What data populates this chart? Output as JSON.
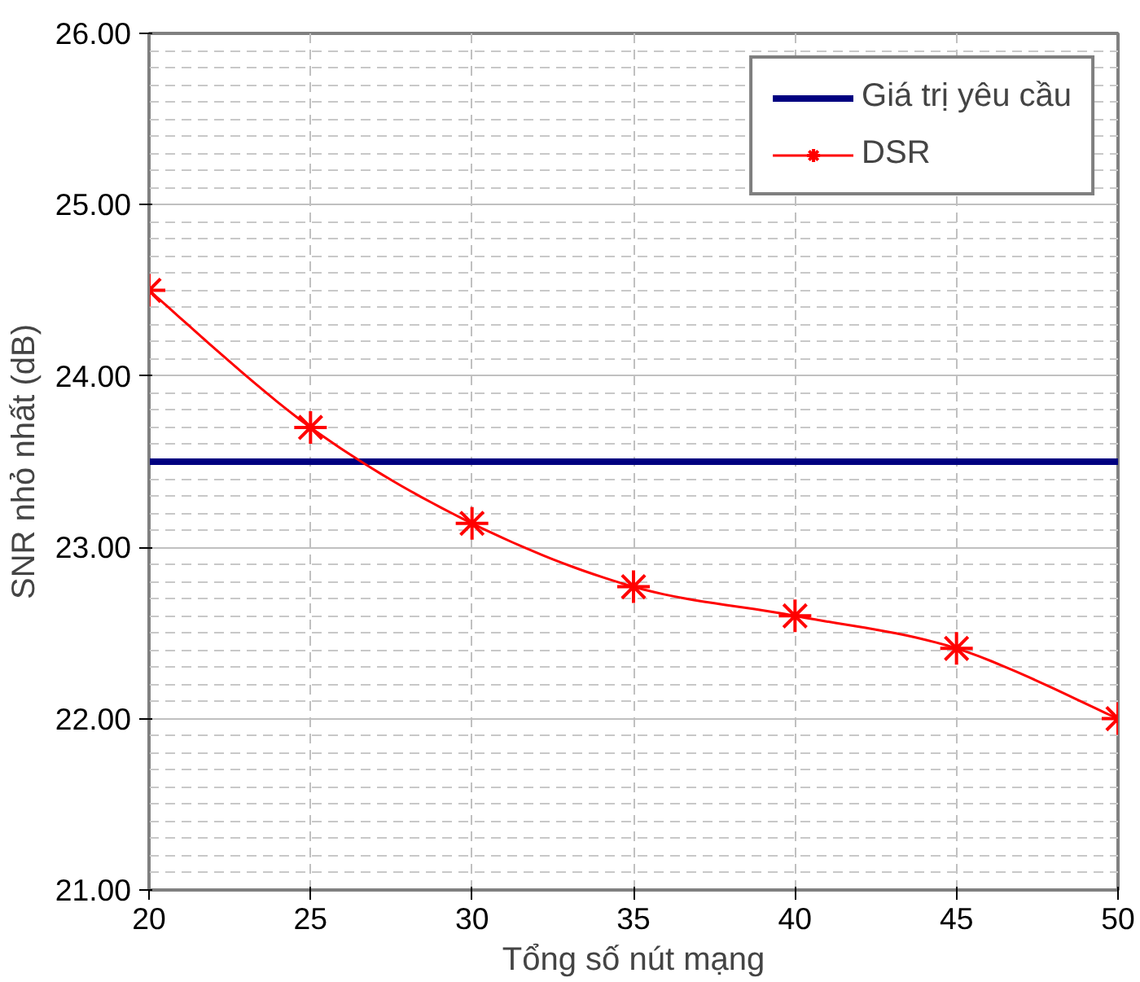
{
  "chart_data": {
    "type": "line",
    "xlabel": "Tổng số nút mạng",
    "ylabel": "SNR nhỏ nhất (dB)",
    "x": [
      20,
      25,
      30,
      35,
      40,
      45,
      50
    ],
    "series": [
      {
        "name": "Giá trị yêu cầu",
        "color": "#000080",
        "values": [
          23.5,
          23.5,
          23.5,
          23.5,
          23.5,
          23.5,
          23.5
        ],
        "marker": "none"
      },
      {
        "name": "DSR",
        "color": "#ff0000",
        "values": [
          24.5,
          23.7,
          23.14,
          22.77,
          22.6,
          22.41,
          22.0
        ],
        "marker": "cross"
      }
    ],
    "xlim": [
      20,
      50
    ],
    "xticks": [
      20,
      25,
      30,
      35,
      40,
      45,
      50
    ],
    "ylim": [
      21,
      26
    ],
    "yticks": [
      {
        "value": 21,
        "label": "21.00"
      },
      {
        "value": 22,
        "label": "22.00"
      },
      {
        "value": 23,
        "label": "23.00"
      },
      {
        "value": 24,
        "label": "24.00"
      },
      {
        "value": 25,
        "label": "25.00"
      },
      {
        "value": 26,
        "label": "26.00"
      }
    ],
    "grid": true,
    "legend": "top right",
    "line_style": "solid"
  }
}
